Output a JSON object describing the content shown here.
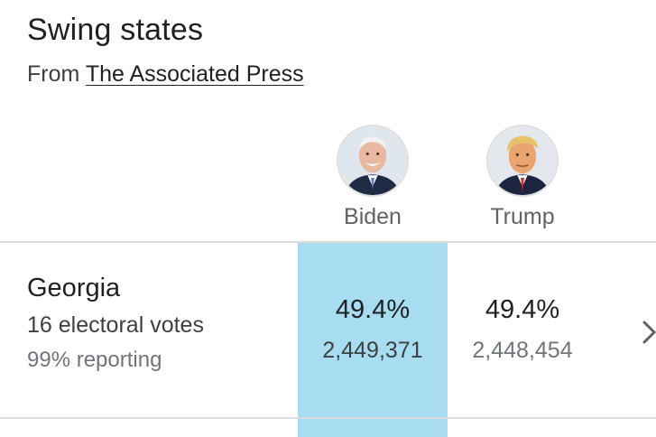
{
  "header": {
    "title": "Swing states",
    "source_prefix": "From",
    "source_link": "The Associated Press"
  },
  "candidates": [
    {
      "name": "Biden",
      "icon": "biden-avatar-icon"
    },
    {
      "name": "Trump",
      "icon": "trump-avatar-icon"
    }
  ],
  "rows": [
    {
      "state": "Georgia",
      "electoral_votes": "16 electoral votes",
      "reporting": "99% reporting",
      "results": [
        {
          "percent": "49.4%",
          "votes": "2,449,371",
          "leading": true
        },
        {
          "percent": "49.4%",
          "votes": "2,448,454",
          "leading": false
        }
      ],
      "expand_icon": "chevron-right-icon"
    }
  ],
  "colors": {
    "leader_highlight": "#a8dcf0",
    "divider": "#dadce0"
  }
}
